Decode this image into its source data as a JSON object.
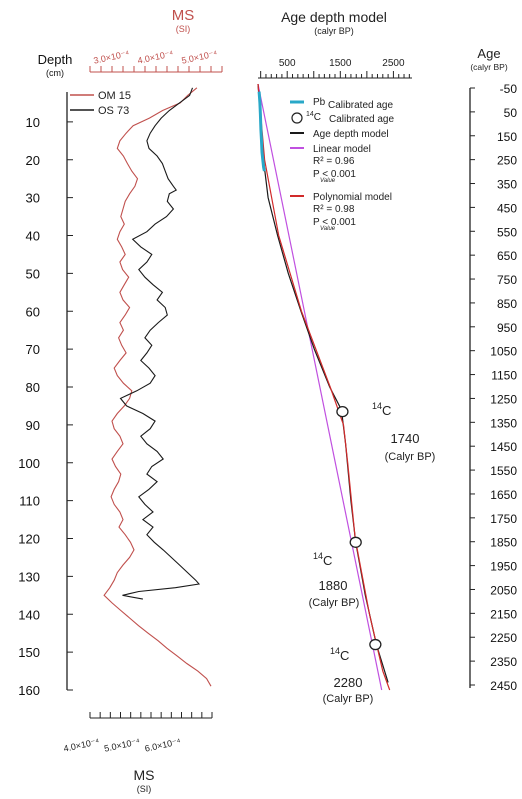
{
  "colors": {
    "om15": "#c0504d",
    "os73": "#1a1a1a",
    "pb": "#29a8c8",
    "age_model": "#1a1a1a",
    "linear": "#c050e0",
    "poly": "#d12a2a",
    "axis": "#222222",
    "ms_top_axis": "#c0504d"
  },
  "chart_data": [
    {
      "type": "line",
      "panel": "Magnetic susceptibility",
      "title": "",
      "depth_axis": {
        "label": "Depth",
        "unit": "(cm)",
        "range": [
          0,
          160
        ],
        "ticks": [
          "10",
          "20",
          "30",
          "40",
          "50",
          "60",
          "70",
          "80",
          "90",
          "100",
          "110",
          "120",
          "130",
          "140",
          "150",
          "160"
        ]
      },
      "top_axis": {
        "label": "MS",
        "unit": "(SI)",
        "range": [
          0.00025,
          0.00055
        ],
        "tick_labels": [
          "3.0×10⁻⁴",
          "4.0×10⁻⁴",
          "5.0×10⁻⁴"
        ],
        "tick_values": [
          0.0003,
          0.0004,
          0.0005
        ]
      },
      "bottom_axis": {
        "label": "MS",
        "unit": "(SI)",
        "range": [
          0.0004,
          0.0007
        ],
        "tick_labels": [
          "4.0×10⁻⁴",
          "5.0×10⁻⁴",
          "6.0×10⁻⁴"
        ],
        "tick_values": [
          0.0004,
          0.0005,
          0.0006
        ]
      },
      "series": [
        {
          "name": "OM 15",
          "axis": "top",
          "points": [
            [
              1,
              0.000493
            ],
            [
              3,
              0.000472
            ],
            [
              5,
              0.000455
            ],
            [
              7,
              0.000415
            ],
            [
              9,
              0.000385
            ],
            [
              11,
              0.000348
            ],
            [
              13,
              0.000332
            ],
            [
              15,
              0.000318
            ],
            [
              17,
              0.000312
            ],
            [
              19,
              0.000326
            ],
            [
              21,
              0.000335
            ],
            [
              23,
              0.000345
            ],
            [
              25,
              0.000358
            ],
            [
              27,
              0.000352
            ],
            [
              29,
              0.00034
            ],
            [
              31,
              0.00033
            ],
            [
              33,
              0.000325
            ],
            [
              35,
              0.00032
            ],
            [
              37,
              0.000328
            ],
            [
              39,
              0.000318
            ],
            [
              41,
              0.000312
            ],
            [
              43,
              0.000322
            ],
            [
              45,
              0.00033
            ],
            [
              47,
              0.000318
            ],
            [
              49,
              0.000324
            ],
            [
              51,
              0.000338
            ],
            [
              53,
              0.000328
            ],
            [
              55,
              0.000318
            ],
            [
              57,
              0.000325
            ],
            [
              59,
              0.00034
            ],
            [
              61,
              0.00033
            ],
            [
              63,
              0.000318
            ],
            [
              65,
              0.000326
            ],
            [
              67,
              0.000315
            ],
            [
              69,
              0.000322
            ],
            [
              71,
              0.000332
            ],
            [
              73,
              0.000318
            ],
            [
              75,
              0.000305
            ],
            [
              77,
              0.000312
            ],
            [
              79,
              0.000326
            ],
            [
              81,
              0.000345
            ],
            [
              83,
              0.00034
            ],
            [
              85,
              0.000328
            ],
            [
              87,
              0.000312
            ],
            [
              89,
              0.0003
            ],
            [
              91,
              0.000305
            ],
            [
              93,
              0.000318
            ],
            [
              95,
              0.000325
            ],
            [
              97,
              0.000312
            ],
            [
              99,
              0.0003
            ],
            [
              101,
              0.000308
            ],
            [
              103,
              0.00032
            ],
            [
              105,
              0.000315
            ],
            [
              107,
              0.000305
            ],
            [
              109,
              0.000298
            ],
            [
              111,
              0.000305
            ],
            [
              113,
              0.000318
            ],
            [
              115,
              0.000325
            ],
            [
              117,
              0.000316
            ],
            [
              119,
              0.00033
            ],
            [
              121,
              0.000342
            ],
            [
              123,
              0.00035
            ],
            [
              125,
              0.00034
            ],
            [
              127,
              0.000325
            ],
            [
              129,
              0.000312
            ],
            [
              131,
              0.000305
            ],
            [
              133,
              0.000295
            ],
            [
              135,
              0.000282
            ],
            [
              137,
              0.0003
            ],
            [
              139,
              0.00032
            ],
            [
              141,
              0.00034
            ],
            [
              143,
              0.00036
            ],
            [
              145,
              0.000382
            ],
            [
              147,
              0.000405
            ],
            [
              149,
              0.000425
            ],
            [
              151,
              0.000448
            ],
            [
              153,
              0.00047
            ],
            [
              155,
              0.000495
            ],
            [
              157,
              0.000515
            ],
            [
              159,
              0.000525
            ]
          ]
        },
        {
          "name": "OS 73",
          "axis": "bottom",
          "points": [
            [
              1,
              0.000652
            ],
            [
              3,
              0.000645
            ],
            [
              5,
              0.00062
            ],
            [
              7,
              0.000595
            ],
            [
              9,
              0.000575
            ],
            [
              11,
              0.00056
            ],
            [
              13,
              0.000548
            ],
            [
              15,
              0.00054
            ],
            [
              17,
              0.000545
            ],
            [
              19,
              0.000565
            ],
            [
              21,
              0.000578
            ],
            [
              23,
              0.000585
            ],
            [
              25,
              0.000592
            ],
            [
              27,
              0.000605
            ],
            [
              28,
              0.000612
            ],
            [
              29,
              0.000595
            ],
            [
              31,
              0.00059
            ],
            [
              33,
              0.000605
            ],
            [
              35,
              0.000588
            ],
            [
              37,
              0.00056
            ],
            [
              39,
              0.00054
            ],
            [
              41,
              0.000505
            ],
            [
              43,
              0.000525
            ],
            [
              45,
              0.000552
            ],
            [
              47,
              0.00054
            ],
            [
              49,
              0.00052
            ],
            [
              51,
              0.000535
            ],
            [
              53,
              0.000555
            ],
            [
              55,
              0.000578
            ],
            [
              57,
              0.000565
            ],
            [
              59,
              0.000585
            ],
            [
              61,
              0.00059
            ],
            [
              63,
              0.000568
            ],
            [
              65,
              0.000548
            ],
            [
              67,
              0.000535
            ],
            [
              69,
              0.000552
            ],
            [
              71,
              0.00054
            ],
            [
              73,
              0.000525
            ],
            [
              75,
              0.000545
            ],
            [
              77,
              0.00056
            ],
            [
              79,
              0.000548
            ],
            [
              81,
              0.000515
            ],
            [
              83,
              0.000475
            ],
            [
              85,
              0.00049
            ],
            [
              87,
              0.00053
            ],
            [
              89,
              0.00056
            ],
            [
              91,
              0.000548
            ],
            [
              93,
              0.000525
            ],
            [
              95,
              0.00054
            ],
            [
              97,
              0.000565
            ],
            [
              99,
              0.00058
            ],
            [
              101,
              0.000552
            ],
            [
              103,
              0.00054
            ],
            [
              105,
              0.000565
            ],
            [
              107,
              0.000545
            ],
            [
              109,
              0.00052
            ],
            [
              111,
              0.000535
            ],
            [
              113,
              0.000555
            ],
            [
              115,
              0.00053
            ],
            [
              117,
              0.000555
            ],
            [
              119,
              0.00054
            ],
            [
              121,
              0.000558
            ],
            [
              123,
              0.00058
            ],
            [
              125,
              0.0006
            ],
            [
              127,
              0.00062
            ],
            [
              129,
              0.00064
            ],
            [
              131,
              0.00066
            ],
            [
              132,
              0.000668
            ],
            [
              133,
              0.00061
            ],
            [
              134,
              0.00052
            ],
            [
              135,
              0.00048
            ],
            [
              136,
              0.00053
            ]
          ]
        }
      ]
    },
    {
      "type": "line",
      "panel": "Age depth model",
      "title": "Age depth model",
      "subtitle": "(calyr BP)",
      "x_axis": {
        "range": [
          -50,
          2850
        ],
        "ticks": [
          500,
          1500,
          2500
        ]
      },
      "depth_range": [
        0,
        160
      ],
      "right_axis": {
        "label": "Age",
        "unit": "(calyr BP)",
        "range": [
          -50,
          2450
        ],
        "ticks": [
          "-50",
          "50",
          "150",
          "250",
          "350",
          "450",
          "550",
          "650",
          "750",
          "850",
          "950",
          "1050",
          "1150",
          "1250",
          "1350",
          "1450",
          "1550",
          "1650",
          "1750",
          "1850",
          "1950",
          "2050",
          "2150",
          "2250",
          "2350",
          "2450"
        ]
      },
      "legend": [
        {
          "prefix": "Pb",
          "label": "Calibrated age"
        },
        {
          "prefix": "14C",
          "label": "Calibrated age"
        },
        {
          "label": "Age depth model"
        },
        {
          "label": "Linear model",
          "stats": [
            "R² = 0.96",
            "P < 0.001"
          ],
          "sub": "Value"
        },
        {
          "label": "Polynomial model",
          "stats": [
            "R² = 0.98",
            "P < 0.001"
          ],
          "sub": "Value"
        }
      ],
      "series": [
        {
          "name": "Pb",
          "points": [
            [
              2,
              -30
            ],
            [
              5,
              -15
            ],
            [
              8,
              -5
            ],
            [
              12,
              5
            ],
            [
              15,
              15
            ],
            [
              18,
              25
            ],
            [
              20,
              40
            ],
            [
              22,
              55
            ],
            [
              23,
              70
            ]
          ]
        },
        {
          "name": "Age depth model",
          "points": [
            [
              0,
              -50
            ],
            [
              22,
              70
            ],
            [
              30,
              140
            ],
            [
              40,
              320
            ],
            [
              50,
              520
            ],
            [
              60,
              760
            ],
            [
              70,
              1010
            ],
            [
              80,
              1300
            ],
            [
              86,
              1520
            ],
            [
              95,
              1600
            ],
            [
              110,
              1700
            ],
            [
              121,
              1790
            ],
            [
              135,
              1970
            ],
            [
              148,
              2180
            ],
            [
              158,
              2400
            ]
          ]
        },
        {
          "name": "Linear model",
          "points": [
            [
              0,
              -50
            ],
            [
              160,
              2280
            ]
          ]
        },
        {
          "name": "Polynomial model",
          "points": [
            [
              0,
              -50
            ],
            [
              20,
              75
            ],
            [
              40,
              340
            ],
            [
              60,
              770
            ],
            [
              80,
              1310
            ],
            [
              90,
              1560
            ],
            [
              100,
              1640
            ],
            [
              120,
              1780
            ],
            [
              140,
              2050
            ],
            [
              155,
              2300
            ],
            [
              160,
              2430
            ]
          ]
        }
      ],
      "c14_dates": [
        {
          "label": "14C",
          "age": "1740",
          "unit": "(Calyr BP)",
          "depth": 86.5,
          "x": 1540
        },
        {
          "label": "14C",
          "age": "1880",
          "unit": "(Calyr BP)",
          "depth": 121,
          "x": 1790
        },
        {
          "label": "14C",
          "age": "2280",
          "unit": "(Calyr BP)",
          "depth": 148,
          "x": 2160
        }
      ]
    }
  ]
}
